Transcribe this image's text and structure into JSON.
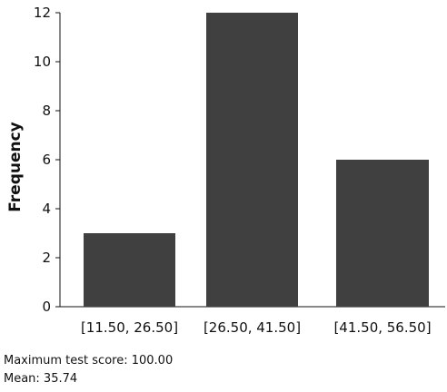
{
  "chart_data": {
    "type": "bar",
    "title": "",
    "xlabel": "",
    "ylabel": "Frequency",
    "categories": [
      "[11.50, 26.50]",
      "[26.50, 41.50]",
      "[41.50, 56.50]"
    ],
    "values": [
      3,
      12,
      6
    ],
    "ylim": [
      0,
      12
    ],
    "yticks": [
      0,
      2,
      4,
      6,
      8,
      10,
      12
    ],
    "grid": false,
    "bar_color": "#404040"
  },
  "footer": {
    "max_score": "Maximum test score: 100.00",
    "mean": "Mean: 35.74"
  }
}
